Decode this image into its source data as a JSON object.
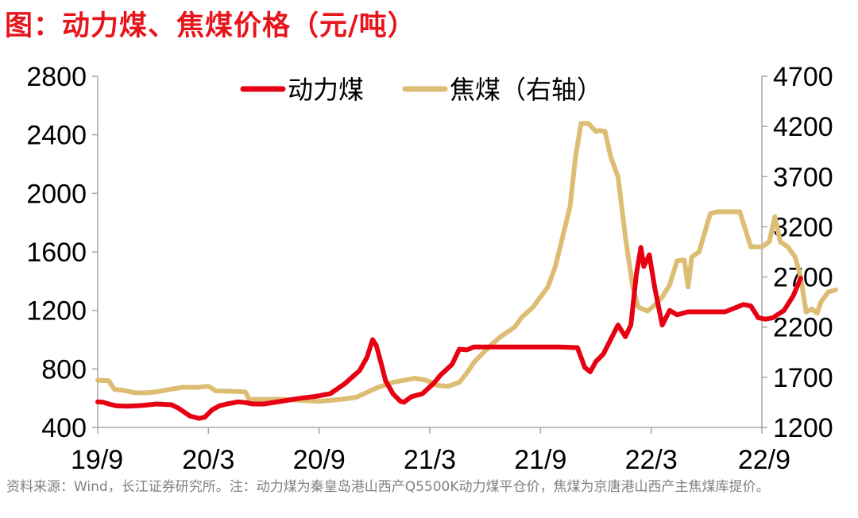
{
  "title": "图：动力煤、焦煤价格（元/吨）",
  "source_note": "资料来源：Wind，长江证券研究所。注：动力煤为秦皇岛港山西产Q5500K动力煤平仓价，焦煤为京唐港山西产主焦煤库提价。",
  "chart_data": {
    "type": "line",
    "x_tick_labels": [
      "19/9",
      "20/3",
      "20/9",
      "21/3",
      "21/9",
      "22/3",
      "22/9"
    ],
    "ylim_left": [
      400,
      2800
    ],
    "yticks_left": [
      "400",
      "800",
      "1200",
      "1600",
      "2000",
      "2400",
      "2800"
    ],
    "ylim_right": [
      1200,
      4700
    ],
    "yticks_right": [
      "1200",
      "1700",
      "2200",
      "2700",
      "3200",
      "3700",
      "4200",
      "4700"
    ],
    "legend_position": "top-center",
    "series": [
      {
        "name": "动力煤",
        "axis": "left",
        "color": "#e60012",
        "points": [
          [
            0,
            575
          ],
          [
            0.15,
            572
          ],
          [
            0.3,
            560
          ],
          [
            0.5,
            548
          ],
          [
            0.8,
            545
          ],
          [
            1.2,
            550
          ],
          [
            1.6,
            560
          ],
          [
            2.0,
            555
          ],
          [
            2.2,
            530
          ],
          [
            2.5,
            478
          ],
          [
            2.75,
            462
          ],
          [
            2.9,
            470
          ],
          [
            3.1,
            520
          ],
          [
            3.3,
            548
          ],
          [
            3.5,
            560
          ],
          [
            3.8,
            575
          ],
          [
            4.0,
            570
          ],
          [
            4.2,
            560
          ],
          [
            4.5,
            560
          ],
          [
            5.0,
            580
          ],
          [
            5.5,
            600
          ],
          [
            5.9,
            612
          ],
          [
            6.3,
            630
          ],
          [
            6.7,
            700
          ],
          [
            7.1,
            790
          ],
          [
            7.3,
            880
          ],
          [
            7.45,
            1000
          ],
          [
            7.55,
            960
          ],
          [
            7.7,
            820
          ],
          [
            7.8,
            720
          ],
          [
            8.0,
            630
          ],
          [
            8.2,
            580
          ],
          [
            8.3,
            572
          ],
          [
            8.5,
            610
          ],
          [
            8.8,
            630
          ],
          [
            9.1,
            700
          ],
          [
            9.3,
            760
          ],
          [
            9.6,
            830
          ],
          [
            9.8,
            935
          ],
          [
            10.0,
            930
          ],
          [
            10.2,
            950
          ],
          [
            10.5,
            950
          ],
          [
            11.0,
            950
          ],
          [
            11.5,
            950
          ],
          [
            12.0,
            950
          ],
          [
            12.5,
            950
          ],
          [
            13.0,
            945
          ],
          [
            13.2,
            810
          ],
          [
            13.35,
            780
          ],
          [
            13.5,
            850
          ],
          [
            13.7,
            900
          ],
          [
            13.9,
            1000
          ],
          [
            14.1,
            1100
          ],
          [
            14.3,
            1020
          ],
          [
            14.45,
            1100
          ],
          [
            14.6,
            1450
          ],
          [
            14.72,
            1630
          ],
          [
            14.8,
            1500
          ],
          [
            14.95,
            1580
          ],
          [
            15.1,
            1350
          ],
          [
            15.3,
            1100
          ],
          [
            15.5,
            1200
          ],
          [
            15.7,
            1170
          ],
          [
            16.0,
            1190
          ],
          [
            16.5,
            1190
          ],
          [
            17.0,
            1190
          ],
          [
            17.5,
            1240
          ],
          [
            17.7,
            1230
          ],
          [
            17.9,
            1150
          ],
          [
            18.1,
            1140
          ],
          [
            18.3,
            1150
          ],
          [
            18.6,
            1200
          ],
          [
            18.85,
            1300
          ],
          [
            19.05,
            1420
          ]
        ]
      },
      {
        "name": "焦煤（右轴）",
        "axis": "right",
        "color": "#dcbd73",
        "points": [
          [
            0,
            1670
          ],
          [
            0.3,
            1665
          ],
          [
            0.45,
            1580
          ],
          [
            0.7,
            1570
          ],
          [
            1.0,
            1545
          ],
          [
            1.3,
            1545
          ],
          [
            1.6,
            1555
          ],
          [
            1.9,
            1575
          ],
          [
            2.3,
            1600
          ],
          [
            2.7,
            1600
          ],
          [
            3.0,
            1610
          ],
          [
            3.2,
            1565
          ],
          [
            3.6,
            1560
          ],
          [
            4.0,
            1555
          ],
          [
            4.1,
            1480
          ],
          [
            4.5,
            1480
          ],
          [
            5.0,
            1480
          ],
          [
            5.5,
            1470
          ],
          [
            6.0,
            1460
          ],
          [
            6.3,
            1470
          ],
          [
            6.6,
            1480
          ],
          [
            7.0,
            1500
          ],
          [
            7.3,
            1550
          ],
          [
            7.6,
            1600
          ],
          [
            8.0,
            1650
          ],
          [
            8.6,
            1690
          ],
          [
            8.9,
            1670
          ],
          [
            9.2,
            1620
          ],
          [
            9.5,
            1610
          ],
          [
            9.8,
            1650
          ],
          [
            10.0,
            1740
          ],
          [
            10.2,
            1850
          ],
          [
            10.6,
            2000
          ],
          [
            10.9,
            2100
          ],
          [
            11.1,
            2150
          ],
          [
            11.3,
            2200
          ],
          [
            11.5,
            2300
          ],
          [
            11.8,
            2400
          ],
          [
            12.0,
            2500
          ],
          [
            12.2,
            2600
          ],
          [
            12.4,
            2800
          ],
          [
            12.6,
            3100
          ],
          [
            12.8,
            3400
          ],
          [
            12.95,
            3900
          ],
          [
            13.1,
            4230
          ],
          [
            13.3,
            4230
          ],
          [
            13.5,
            4150
          ],
          [
            13.6,
            4160
          ],
          [
            13.75,
            4150
          ],
          [
            13.9,
            3900
          ],
          [
            14.1,
            3700
          ],
          [
            14.3,
            3100
          ],
          [
            14.5,
            2600
          ],
          [
            14.65,
            2400
          ],
          [
            14.9,
            2360
          ],
          [
            15.1,
            2420
          ],
          [
            15.3,
            2500
          ],
          [
            15.5,
            2620
          ],
          [
            15.7,
            2860
          ],
          [
            15.9,
            2870
          ],
          [
            16.0,
            2600
          ],
          [
            16.1,
            2900
          ],
          [
            16.3,
            2950
          ],
          [
            16.6,
            3330
          ],
          [
            16.8,
            3350
          ],
          [
            17.1,
            3350
          ],
          [
            17.4,
            3350
          ],
          [
            17.7,
            3000
          ],
          [
            18.0,
            3000
          ],
          [
            18.2,
            3050
          ],
          [
            18.35,
            3300
          ],
          [
            18.5,
            3050
          ],
          [
            18.7,
            3000
          ],
          [
            18.9,
            2900
          ],
          [
            19.05,
            2700
          ],
          [
            19.2,
            2350
          ],
          [
            19.35,
            2380
          ],
          [
            19.5,
            2340
          ],
          [
            19.6,
            2450
          ],
          [
            19.8,
            2550
          ],
          [
            20.0,
            2570
          ]
        ]
      }
    ]
  }
}
